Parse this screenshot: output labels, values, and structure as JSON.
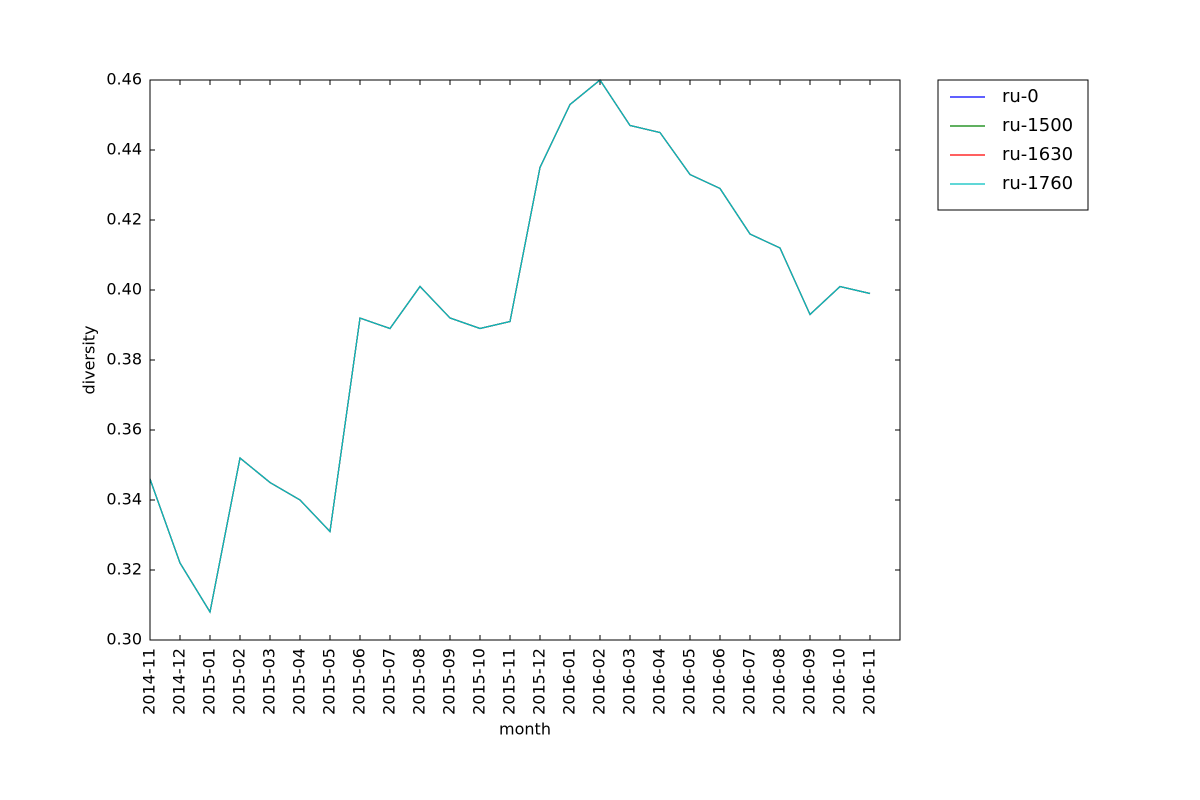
{
  "chart_data": {
    "type": "line",
    "x_label": "month",
    "y_label": "diversity",
    "categories": [
      "2014-11",
      "2014-12",
      "2015-01",
      "2015-02",
      "2015-03",
      "2015-04",
      "2015-05",
      "2015-06",
      "2015-07",
      "2015-08",
      "2015-09",
      "2015-10",
      "2015-11",
      "2015-12",
      "2016-01",
      "2016-02",
      "2016-03",
      "2016-04",
      "2016-05",
      "2016-06",
      "2016-07",
      "2016-08",
      "2016-09",
      "2016-10",
      "2016-11"
    ],
    "series": [
      {
        "name": "ru-0",
        "color": "#0000ff",
        "values": [
          0.346,
          0.322,
          0.308,
          0.352,
          0.345,
          0.34,
          0.331,
          0.392,
          0.389,
          0.401,
          0.392,
          0.389,
          0.391,
          0.435,
          0.453,
          0.46,
          0.447,
          0.445,
          0.433,
          0.429,
          0.416,
          0.412,
          0.393,
          0.401,
          0.399
        ]
      },
      {
        "name": "ru-1500",
        "color": "#008000",
        "values": [
          0.346,
          0.322,
          0.308,
          0.352,
          0.345,
          0.34,
          0.331,
          0.392,
          0.389,
          0.401,
          0.392,
          0.389,
          0.391,
          0.435,
          0.453,
          0.46,
          0.447,
          0.445,
          0.433,
          0.429,
          0.416,
          0.412,
          0.393,
          0.401,
          0.399
        ]
      },
      {
        "name": "ru-1630",
        "color": "#ff0000",
        "values": [
          0.346,
          0.322,
          0.308,
          0.352,
          0.345,
          0.34,
          0.331,
          0.392,
          0.389,
          0.401,
          0.392,
          0.389,
          0.391,
          0.435,
          0.453,
          0.46,
          0.447,
          0.445,
          0.433,
          0.429,
          0.416,
          0.412,
          0.393,
          0.401,
          0.399
        ]
      },
      {
        "name": "ru-1760",
        "color": "#00bfbf",
        "values": [
          0.346,
          0.322,
          0.308,
          0.352,
          0.345,
          0.34,
          0.331,
          0.392,
          0.389,
          0.401,
          0.392,
          0.389,
          0.391,
          0.435,
          0.453,
          0.46,
          0.447,
          0.445,
          0.433,
          0.429,
          0.416,
          0.412,
          0.393,
          0.401,
          0.399
        ]
      }
    ],
    "ylim": [
      0.3,
      0.46
    ],
    "yticks": [
      {
        "value": 0.3,
        "label": "0.30"
      },
      0.32,
      0.34,
      0.36,
      0.38,
      {
        "value": 0.4,
        "label": "0.40"
      },
      0.42,
      0.44,
      0.46
    ],
    "grid": false,
    "legend_position": "outside right"
  }
}
